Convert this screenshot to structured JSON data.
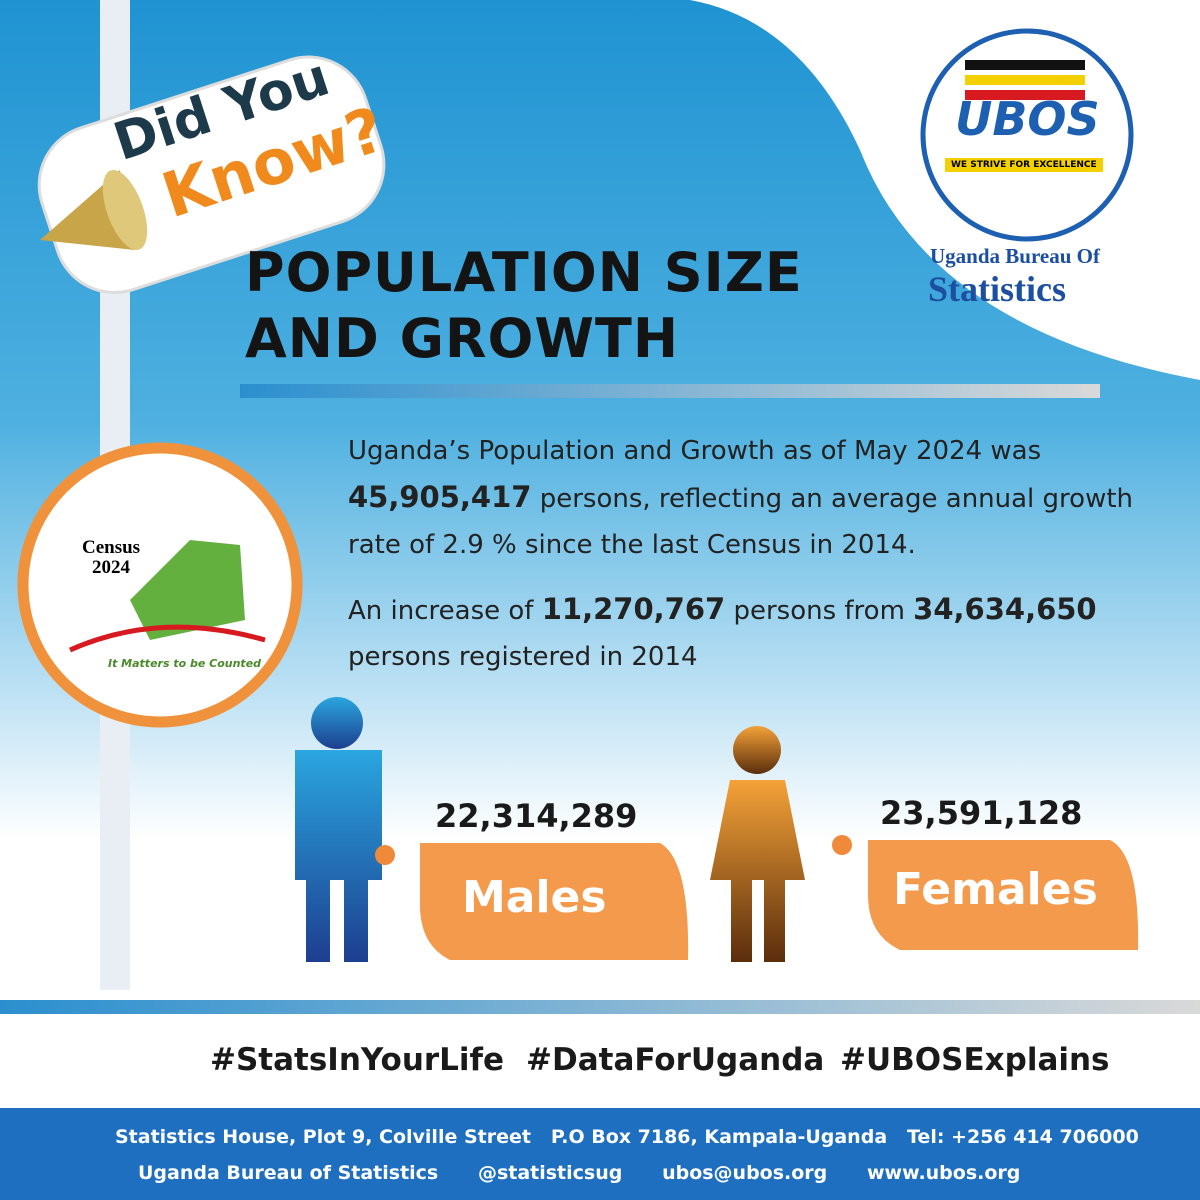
{
  "badge": {
    "line1": "Did You",
    "line2": "Know?"
  },
  "logo": {
    "mark": "UBOS",
    "motto": "WE STRIVE FOR EXCELLENCE",
    "name1": "Uganda Bureau Of",
    "name2": "Statistics"
  },
  "title": {
    "line1": "POPULATION SIZE",
    "line2": "AND GROWTH"
  },
  "paragraph1": {
    "before": "Uganda’s Population and Growth  as of May 2024 was",
    "figure": "45,905,417",
    "after": "persons, reflecting an average annual growth rate of 2.9 % since the last Census in 2014."
  },
  "paragraph2": {
    "before": "An increase of",
    "figure1": "11,270,767",
    "middle": "persons from",
    "figure2": "34,634,650",
    "after": "persons registered in 2014"
  },
  "census_logo": {
    "line1": "Census",
    "line2": "2024",
    "slogan": "It Matters to be Counted"
  },
  "males": {
    "count": "22,314,289",
    "label": "Males"
  },
  "females": {
    "count": "23,591,128",
    "label": "Females"
  },
  "hashtags": [
    "#StatsInYourLife",
    "#DataForUganda",
    "#UBOSExplains"
  ],
  "footer": {
    "address": [
      "Statistics House, Plot 9, Colville Street",
      "P.O Box 7186, Kampala-Uganda",
      "Tel: +256 414 706000"
    ],
    "social": [
      "Uganda Bureau of Statistics",
      "@statisticsug",
      "ubos@ubos.org",
      "www.ubos.org"
    ]
  }
}
